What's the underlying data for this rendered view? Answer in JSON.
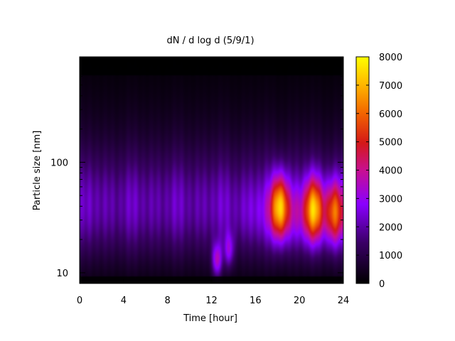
{
  "chart_data": {
    "type": "heatmap",
    "title": "dN / d log d (5/9/1)",
    "xlabel": "Time [hour]",
    "ylabel": "Particle size [nm]",
    "x_range": [
      0,
      24
    ],
    "x_ticks": [
      0,
      4,
      8,
      12,
      16,
      20,
      24
    ],
    "y_scale": "log",
    "y_range": [
      8,
      900
    ],
    "y_ticks": [
      10,
      100
    ],
    "colorbar": {
      "range": [
        0,
        8000
      ],
      "ticks": [
        0,
        1000,
        2000,
        3000,
        4000,
        5000,
        6000,
        7000,
        8000
      ]
    },
    "z_description": "particle number size distribution dN/dlogd",
    "features": [
      {
        "label": "background mode",
        "time": [
          0,
          24
        ],
        "diameter_nm": 38,
        "value": 2400
      },
      {
        "label": "nucleation burst",
        "time": 12.5,
        "diameter_nm": 13,
        "value": 4600
      },
      {
        "label": "nucleation burst",
        "time": 13.6,
        "diameter_nm": 16,
        "value": 3800
      },
      {
        "label": "peak",
        "time": 18.2,
        "diameter_nm": 40,
        "value": 6500
      },
      {
        "label": "peak",
        "time": 21.3,
        "diameter_nm": 38,
        "value": 5800
      },
      {
        "label": "peak",
        "time": 23.2,
        "diameter_nm": 35,
        "value": 5000
      }
    ]
  }
}
